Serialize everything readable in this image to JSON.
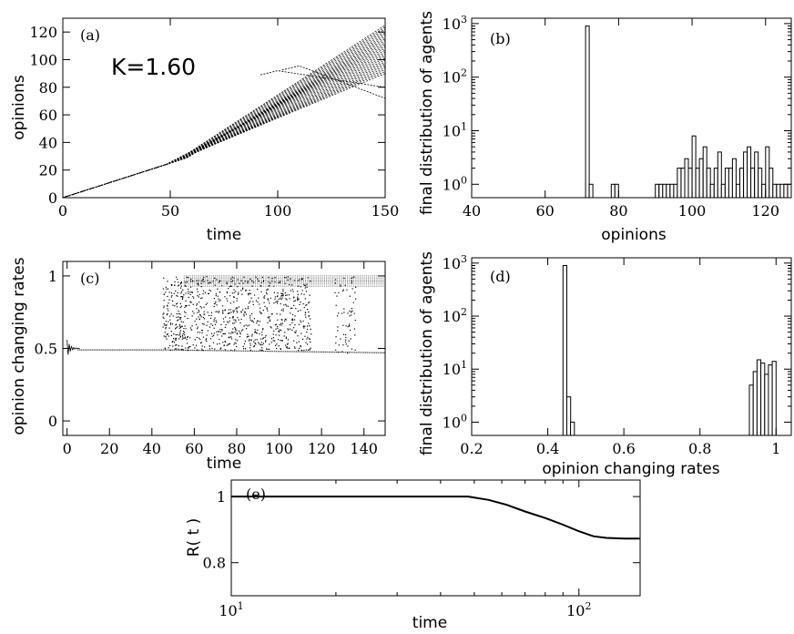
{
  "chart_data": [
    {
      "panel_label": "(a)",
      "type": "line",
      "xlabel": "time",
      "ylabel": "opinions",
      "annotation": "K=1.60",
      "xlim": [
        0,
        150
      ],
      "ylim": [
        0,
        130
      ],
      "xticks": [
        0,
        50,
        100,
        150
      ],
      "yticks": [
        0,
        20,
        40,
        60,
        80,
        100,
        120
      ],
      "xtick_labels": [
        "0",
        "50",
        "100",
        "150"
      ],
      "ytick_labels": [
        "0",
        "20",
        "40",
        "60",
        "80",
        "100",
        "120"
      ],
      "consensus_trajectory": {
        "x": [
          0,
          50
        ],
        "y": [
          0,
          25
        ]
      },
      "spread_at_t150": {
        "min": 90,
        "max": 125
      },
      "outlier_endpoints_t150": [
        72,
        80
      ]
    },
    {
      "panel_label": "(b)",
      "type": "bar",
      "log_y": true,
      "xlabel": "opinions",
      "ylabel": "final distribution of agents",
      "xlim": [
        40,
        127
      ],
      "xticks": [
        40,
        60,
        80,
        100,
        120
      ],
      "xtick_labels": [
        "40",
        "60",
        "80",
        "100",
        "120"
      ],
      "ytick_labels": [
        {
          "base": "10",
          "exp": "0"
        },
        {
          "base": "10",
          "exp": "1"
        },
        {
          "base": "10",
          "exp": "2"
        },
        {
          "base": "10",
          "exp": "3"
        }
      ],
      "bin_width": 1,
      "bins": [
        71,
        72,
        78,
        79,
        90,
        91,
        92,
        93,
        94,
        95,
        96,
        97,
        98,
        99,
        100,
        101,
        102,
        103,
        104,
        105,
        106,
        107,
        108,
        109,
        110,
        111,
        112,
        113,
        114,
        115,
        116,
        117,
        118,
        119,
        120,
        121,
        122,
        123,
        124,
        125,
        126
      ],
      "values": [
        900,
        1,
        1,
        1,
        1,
        1,
        1,
        1,
        1,
        1,
        2,
        2,
        3,
        2,
        8,
        2,
        3,
        5,
        2,
        1,
        2,
        4,
        1,
        2,
        2,
        3,
        1,
        2,
        4,
        5,
        2,
        4,
        2,
        1,
        5,
        2,
        1,
        1,
        1,
        1,
        1
      ]
    },
    {
      "panel_label": "(c)",
      "type": "scatter",
      "xlabel": "time",
      "ylabel": "opinion changing rates",
      "xlim": [
        -2,
        150
      ],
      "ylim": [
        -0.1,
        1.1
      ],
      "xticks": [
        0,
        20,
        40,
        60,
        80,
        100,
        120,
        140
      ],
      "yticks": [
        0,
        0.5,
        1
      ],
      "xtick_labels": [
        "0",
        "20",
        "40",
        "60",
        "80",
        "100",
        "120",
        "140"
      ],
      "ytick_labels": [
        "0",
        "0.5",
        "1"
      ],
      "lower_branch": 0.47,
      "upper_branch_range": [
        0.93,
        1.0
      ],
      "transition_start_time": 45
    },
    {
      "panel_label": "(d)",
      "type": "bar",
      "log_y": true,
      "xlabel": "opinion changing rates",
      "ylabel": "final distribution of agents",
      "xlim": [
        0.2,
        1.04
      ],
      "xticks": [
        0.2,
        0.4,
        0.6,
        0.8,
        1.0
      ],
      "xtick_labels": [
        "0.2",
        "0.4",
        "0.6",
        "0.8",
        "1"
      ],
      "ytick_labels": [
        {
          "base": "10",
          "exp": "0"
        },
        {
          "base": "10",
          "exp": "1"
        },
        {
          "base": "10",
          "exp": "2"
        },
        {
          "base": "10",
          "exp": "3"
        }
      ],
      "bin_width": 0.01,
      "bins": [
        0.44,
        0.45,
        0.46,
        0.93,
        0.94,
        0.95,
        0.96,
        0.97,
        0.98,
        0.99
      ],
      "values": [
        900,
        3,
        1,
        5,
        9,
        15,
        13,
        8,
        12,
        14
      ]
    },
    {
      "panel_label": "(e)",
      "type": "line",
      "log_x": true,
      "xlabel": "time",
      "ylabel": "R( t )",
      "xlim": [
        10,
        150
      ],
      "ylim": [
        0.7,
        1.05
      ],
      "yticks": [
        0.8,
        1
      ],
      "ytick_labels": [
        "0.8",
        "1"
      ],
      "xtick_labels": [
        {
          "base": "10",
          "exp": "1"
        },
        {
          "base": "10",
          "exp": "2"
        }
      ],
      "x": [
        10,
        20,
        30,
        40,
        48,
        55,
        62,
        70,
        80,
        90,
        100,
        110,
        120,
        135,
        150
      ],
      "y": [
        1,
        1,
        1,
        1,
        1,
        0.99,
        0.975,
        0.955,
        0.935,
        0.915,
        0.895,
        0.88,
        0.875,
        0.873,
        0.873
      ]
    }
  ]
}
